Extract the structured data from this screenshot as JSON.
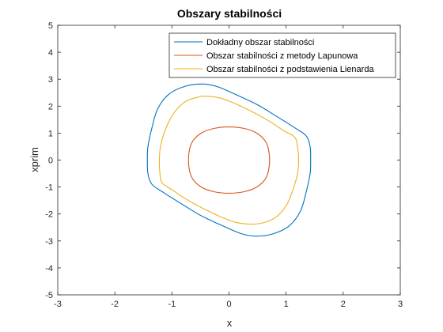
{
  "chart_data": {
    "type": "line",
    "title": "Obszary stabilności",
    "xlabel": "x",
    "ylabel": "xprim",
    "xlim": [
      -3,
      3
    ],
    "ylim": [
      -5,
      5
    ],
    "xticks": [
      -3,
      -2,
      -1,
      0,
      1,
      2,
      3
    ],
    "yticks": [
      -5,
      -4,
      -3,
      -2,
      -1,
      0,
      1,
      2,
      3,
      4,
      5
    ],
    "grid": false,
    "legend_position": "top-right",
    "series": [
      {
        "name": "Dokładny obszar stabilności",
        "color": "#0072BD",
        "points": [
          [
            -0.45,
            2.82
          ],
          [
            -0.2,
            2.72
          ],
          [
            0.1,
            2.45
          ],
          [
            0.5,
            2.05
          ],
          [
            0.85,
            1.6
          ],
          [
            1.15,
            1.2
          ],
          [
            1.35,
            0.9
          ],
          [
            1.42,
            0.5
          ],
          [
            1.43,
            0.0
          ],
          [
            1.42,
            -0.5
          ],
          [
            1.35,
            -1.2
          ],
          [
            1.25,
            -1.9
          ],
          [
            1.05,
            -2.45
          ],
          [
            0.75,
            -2.75
          ],
          [
            0.45,
            -2.82
          ],
          [
            0.2,
            -2.72
          ],
          [
            -0.1,
            -2.45
          ],
          [
            -0.5,
            -2.05
          ],
          [
            -0.85,
            -1.6
          ],
          [
            -1.15,
            -1.2
          ],
          [
            -1.35,
            -0.9
          ],
          [
            -1.42,
            -0.5
          ],
          [
            -1.43,
            0.0
          ],
          [
            -1.42,
            0.5
          ],
          [
            -1.35,
            1.2
          ],
          [
            -1.25,
            1.9
          ],
          [
            -1.05,
            2.45
          ],
          [
            -0.75,
            2.75
          ],
          [
            -0.45,
            2.82
          ]
        ]
      },
      {
        "name": "Obszar stabilności z metody Lapunowa",
        "color": "#D95319",
        "points": [
          [
            0.0,
            1.23
          ],
          [
            0.25,
            1.18
          ],
          [
            0.47,
            1.02
          ],
          [
            0.63,
            0.72
          ],
          [
            0.7,
            0.3
          ],
          [
            0.7,
            -0.3
          ],
          [
            0.63,
            -0.72
          ],
          [
            0.47,
            -1.02
          ],
          [
            0.25,
            -1.18
          ],
          [
            0.0,
            -1.23
          ],
          [
            -0.25,
            -1.18
          ],
          [
            -0.47,
            -1.02
          ],
          [
            -0.63,
            -0.72
          ],
          [
            -0.7,
            -0.3
          ],
          [
            -0.7,
            0.3
          ],
          [
            -0.63,
            0.72
          ],
          [
            -0.47,
            1.02
          ],
          [
            -0.25,
            1.18
          ],
          [
            0.0,
            1.23
          ]
        ]
      },
      {
        "name": "Obszar stabilności z podstawienia Lienarda",
        "color": "#EDB120",
        "points": [
          [
            -0.4,
            2.37
          ],
          [
            -0.15,
            2.3
          ],
          [
            0.1,
            2.1
          ],
          [
            0.4,
            1.8
          ],
          [
            0.7,
            1.45
          ],
          [
            0.95,
            1.1
          ],
          [
            1.15,
            0.85
          ],
          [
            1.2,
            0.5
          ],
          [
            1.22,
            0.0
          ],
          [
            1.2,
            -0.5
          ],
          [
            1.12,
            -1.1
          ],
          [
            1.0,
            -1.7
          ],
          [
            0.8,
            -2.15
          ],
          [
            0.55,
            -2.35
          ],
          [
            0.3,
            -2.37
          ],
          [
            0.1,
            -2.3
          ],
          [
            -0.15,
            -2.1
          ],
          [
            -0.45,
            -1.8
          ],
          [
            -0.75,
            -1.45
          ],
          [
            -1.0,
            -1.1
          ],
          [
            -1.17,
            -0.85
          ],
          [
            -1.21,
            -0.5
          ],
          [
            -1.22,
            0.0
          ],
          [
            -1.2,
            0.5
          ],
          [
            -1.12,
            1.1
          ],
          [
            -0.98,
            1.7
          ],
          [
            -0.78,
            2.15
          ],
          [
            -0.55,
            2.33
          ],
          [
            -0.4,
            2.37
          ]
        ]
      }
    ]
  }
}
